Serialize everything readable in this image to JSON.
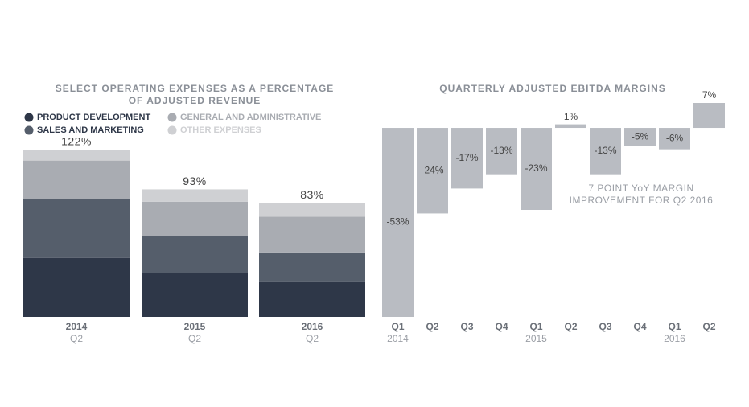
{
  "chart_data": [
    {
      "type": "stacked-bar",
      "title_lines": [
        "SELECT OPERATING EXPENSES AS A PERCENTAGE",
        "OF ADJUSTED REVENUE"
      ],
      "categories": [
        "2014",
        "2015",
        "2016"
      ],
      "subcategories": [
        "Q2",
        "Q2",
        "Q2"
      ],
      "series": [
        {
          "name": "PRODUCT DEVELOPMENT",
          "color": "#2e3748",
          "values": [
            43,
            32,
            26
          ]
        },
        {
          "name": "SALES AND MARKETING",
          "color": "#555e6b",
          "values": [
            43,
            27,
            21
          ]
        },
        {
          "name": "GENERAL AND ADMINISTRATIVE",
          "color": "#a9acb2",
          "values": [
            28,
            25,
            26
          ]
        },
        {
          "name": "OTHER EXPENSES",
          "color": "#cfd0d3",
          "values": [
            8,
            9,
            10
          ]
        }
      ],
      "totals": [
        122,
        93,
        83
      ],
      "total_labels": [
        "122%",
        "93%",
        "83%"
      ]
    },
    {
      "type": "bar",
      "title": "QUARTERLY ADJUSTED EBITDA MARGINS",
      "categories": [
        "Q1",
        "Q2",
        "Q3",
        "Q4",
        "Q1",
        "Q2",
        "Q3",
        "Q4",
        "Q1",
        "Q2"
      ],
      "years": [
        "2014",
        null,
        null,
        null,
        "2015",
        null,
        null,
        null,
        "2016",
        null
      ],
      "values": [
        -53,
        -24,
        -17,
        -13,
        -23,
        1,
        -13,
        -5,
        -6,
        7
      ],
      "value_labels": [
        "-53%",
        "-24%",
        "-17%",
        "-13%",
        "-23%",
        "1%",
        "-13%",
        "-5%",
        "-6%",
        "7%"
      ],
      "color": "#b9bcc2",
      "annotation_lines": [
        "7 POINT YoY MARGIN",
        "IMPROVEMENT FOR Q2 2016"
      ]
    }
  ]
}
